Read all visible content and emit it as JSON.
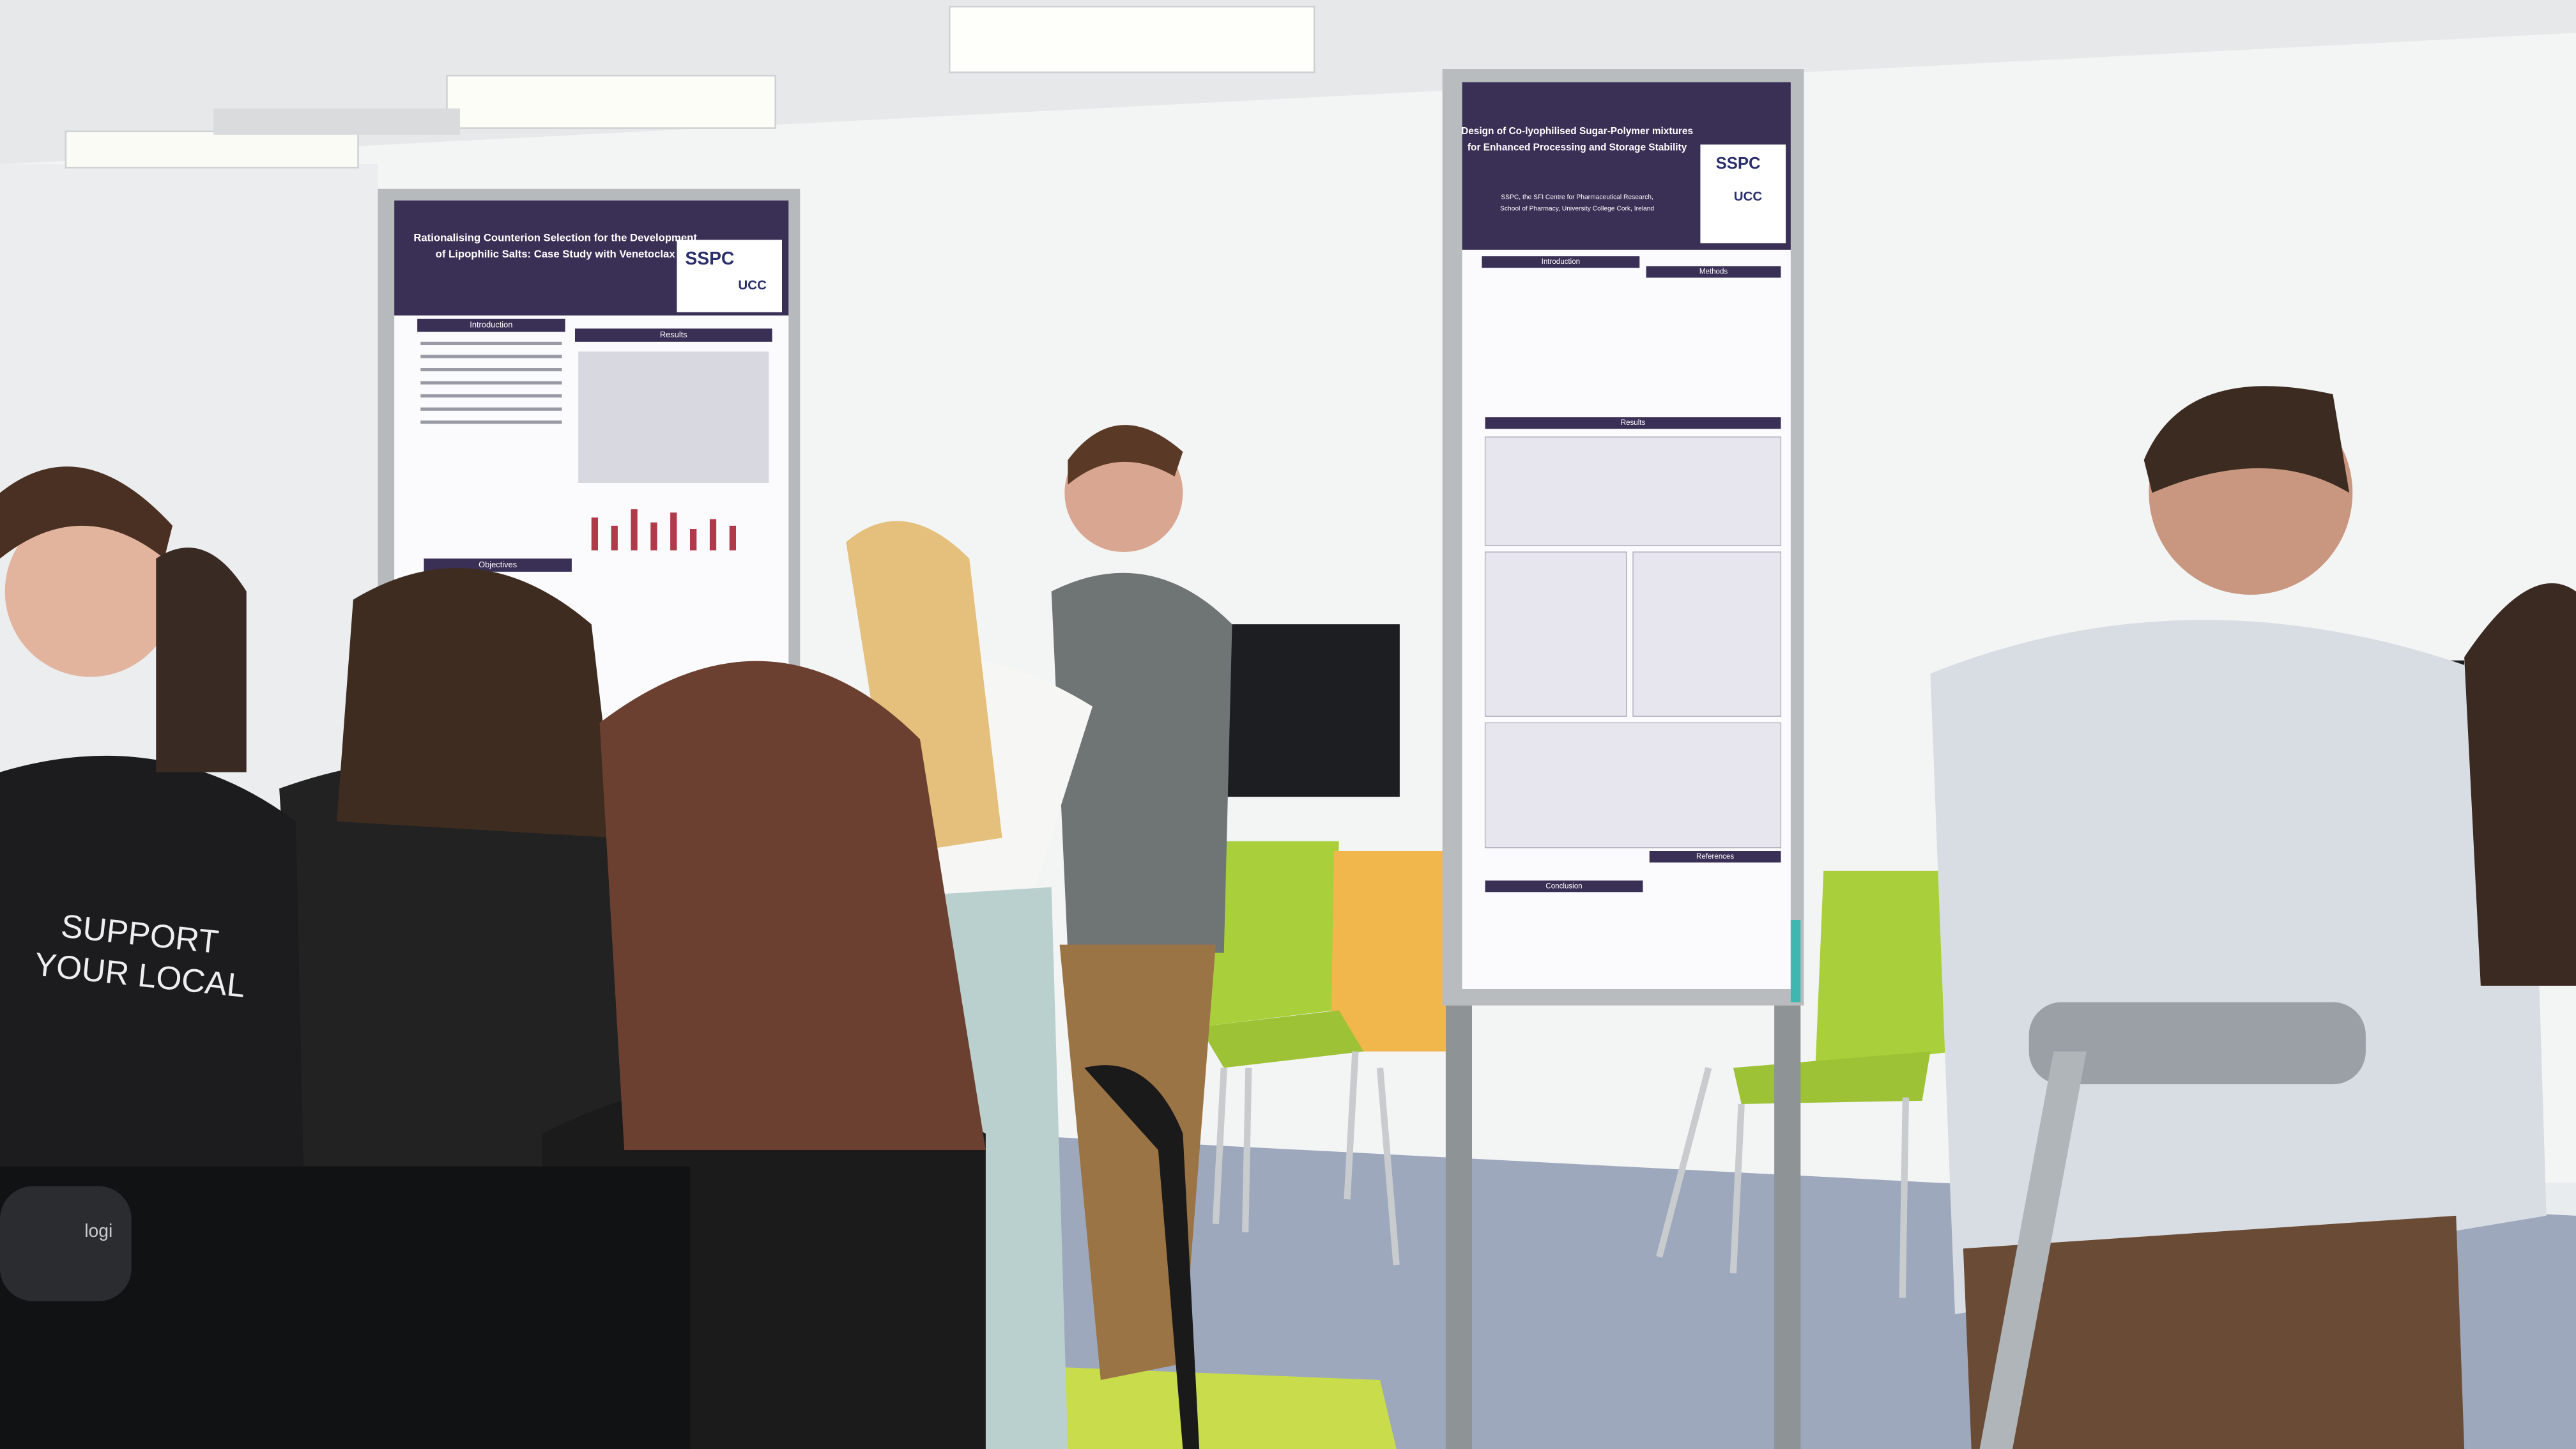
{
  "posters": [
    {
      "title_lines": [
        "Rationalising Counterion Selection for the Development",
        "of Lipophilic Salts: Case Study with Venetoclax"
      ],
      "logos": [
        "SSPC",
        "UCC"
      ],
      "sections": [
        "Introduction",
        "Results",
        "Objectives"
      ]
    },
    {
      "title_lines": [
        "Design of Co-lyophilised Sugar-Polymer mixtures",
        "for Enhanced Processing and Storage Stability"
      ],
      "affiliation_lines": [
        "SSPC, the SFI Centre for Pharmaceutical Research,",
        "School of Pharmacy, University College Cork, Ireland"
      ],
      "logos": [
        "SSPC",
        "UCC"
      ],
      "sections": [
        "Introduction",
        "Methods",
        "Results",
        "Conclusion",
        "References"
      ]
    }
  ],
  "tshirt_lines": [
    "SUPPORT",
    "YOUR LOCAL"
  ],
  "webcam_brand": "logi"
}
